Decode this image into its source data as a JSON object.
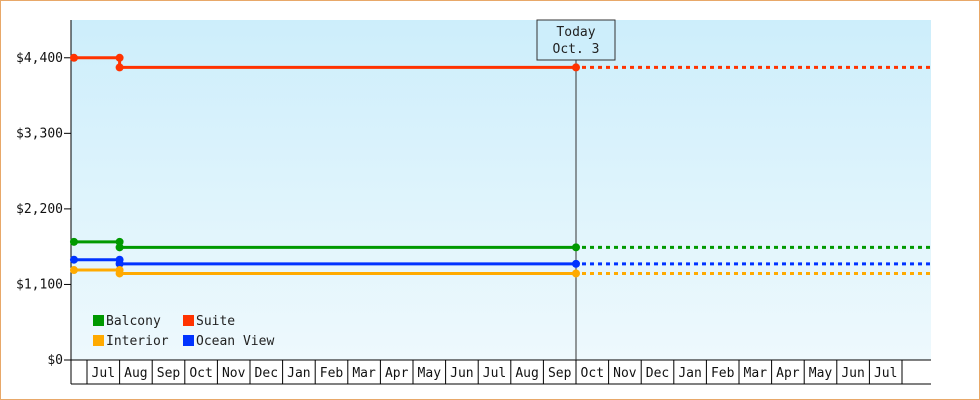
{
  "chart_data": {
    "type": "line",
    "ylim": [
      0,
      4950
    ],
    "y_ticks": [
      {
        "value": 0,
        "label": "$0"
      },
      {
        "value": 1100,
        "label": "$1,100"
      },
      {
        "value": 2200,
        "label": "$2,200"
      },
      {
        "value": 3300,
        "label": "$3,300"
      },
      {
        "value": 4400,
        "label": "$4,400"
      }
    ],
    "months": [
      "Jul",
      "Aug",
      "Sep",
      "Oct",
      "Nov",
      "Dec",
      "Jan",
      "Feb",
      "Mar",
      "Apr",
      "May",
      "Jun",
      "Jul",
      "Aug",
      "Sep",
      "Oct",
      "Nov",
      "Dec",
      "Jan",
      "Feb",
      "Mar",
      "Apr",
      "May",
      "Jun",
      "Jul"
    ],
    "today": {
      "line1": "Today",
      "line2": "Oct. 3",
      "month_index": 15.0
    },
    "series": [
      {
        "name": "Suite",
        "color": "#ff3300",
        "values": [
          4400,
          4260,
          4260
        ],
        "month_index": [
          -0.4,
          1.0,
          15.0
        ]
      },
      {
        "name": "Balcony",
        "color": "#009900",
        "values": [
          1720,
          1640,
          1640
        ],
        "month_index": [
          -0.4,
          1.0,
          15.0
        ]
      },
      {
        "name": "Ocean View",
        "color": "#0033ff",
        "values": [
          1460,
          1400,
          1400
        ],
        "month_index": [
          -0.4,
          1.0,
          15.0
        ]
      },
      {
        "name": "Interior",
        "color": "#ffaa00",
        "values": [
          1310,
          1260,
          1260
        ],
        "month_index": [
          -0.4,
          1.0,
          15.0
        ]
      }
    ],
    "legend": [
      {
        "name": "Balcony",
        "color": "#009900"
      },
      {
        "name": "Suite",
        "color": "#ff3300"
      },
      {
        "name": "Interior",
        "color": "#ffaa00"
      },
      {
        "name": "Ocean View",
        "color": "#0033ff"
      }
    ],
    "legend_position": "bottom-left"
  }
}
